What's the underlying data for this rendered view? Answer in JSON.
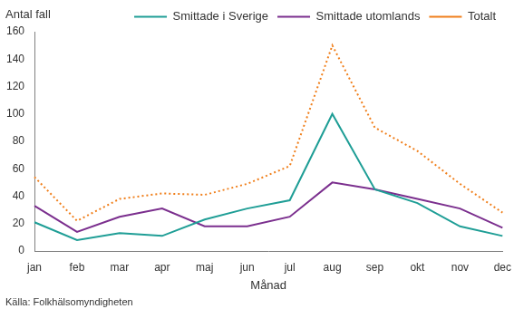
{
  "chart_data": {
    "type": "line",
    "y_label": "Antal fall",
    "x_label": "Månad",
    "source": "Källa: Folkhälsomyndigheten",
    "categories": [
      "jan",
      "feb",
      "mar",
      "apr",
      "maj",
      "jun",
      "jul",
      "aug",
      "sep",
      "okt",
      "nov",
      "dec"
    ],
    "series": [
      {
        "name": "Smittade i Sverige",
        "color": "#1f9e96",
        "line_style": "solid",
        "marker": "none",
        "values": [
          21,
          8,
          13,
          11,
          23,
          31,
          37,
          100,
          45,
          35,
          18,
          11
        ]
      },
      {
        "name": "Smittade utomlands",
        "color": "#7b2f8e",
        "line_style": "solid",
        "marker": "none",
        "values": [
          33,
          14,
          25,
          31,
          18,
          18,
          25,
          50,
          45,
          38,
          31,
          17
        ]
      },
      {
        "name": "Totalt",
        "color": "#f07f1b",
        "line_style": "dotted",
        "marker": "none",
        "values": [
          54,
          22,
          38,
          42,
          41,
          49,
          62,
          150,
          90,
          73,
          49,
          28
        ]
      }
    ],
    "ylim": [
      0,
      160
    ],
    "yticks": [
      0,
      20,
      40,
      60,
      80,
      100,
      120,
      140,
      160
    ],
    "grid": false,
    "legend": "top"
  }
}
